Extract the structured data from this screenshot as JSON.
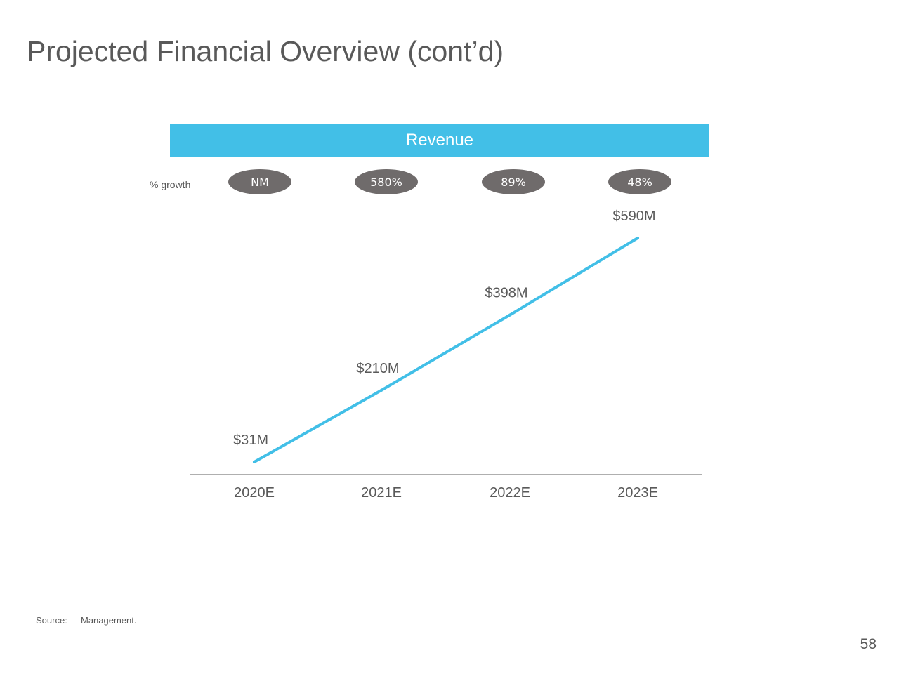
{
  "page": {
    "title": "Projected Financial Overview (cont’d)",
    "page_number": "58"
  },
  "source": {
    "label": "Source:",
    "text": "Management."
  },
  "growth": {
    "label": "% growth",
    "values": [
      "NM",
      "580%",
      "89%",
      "48%"
    ]
  },
  "colors": {
    "accent": "#42bfe7",
    "text": "#595959",
    "pill": "#6f6b6b",
    "axis": "#7f7f7f"
  },
  "chart_data": {
    "type": "line",
    "title": "Revenue",
    "categories": [
      "2020E",
      "2021E",
      "2022E",
      "2023E"
    ],
    "series": [
      {
        "values": [
          31,
          210,
          398,
          590
        ]
      }
    ],
    "data_labels": [
      "$31M",
      "$210M",
      "$398M",
      "$590M"
    ],
    "ylim": [
      0,
      650
    ],
    "grid": false,
    "legend": "none",
    "xlabel": "",
    "ylabel": ""
  }
}
